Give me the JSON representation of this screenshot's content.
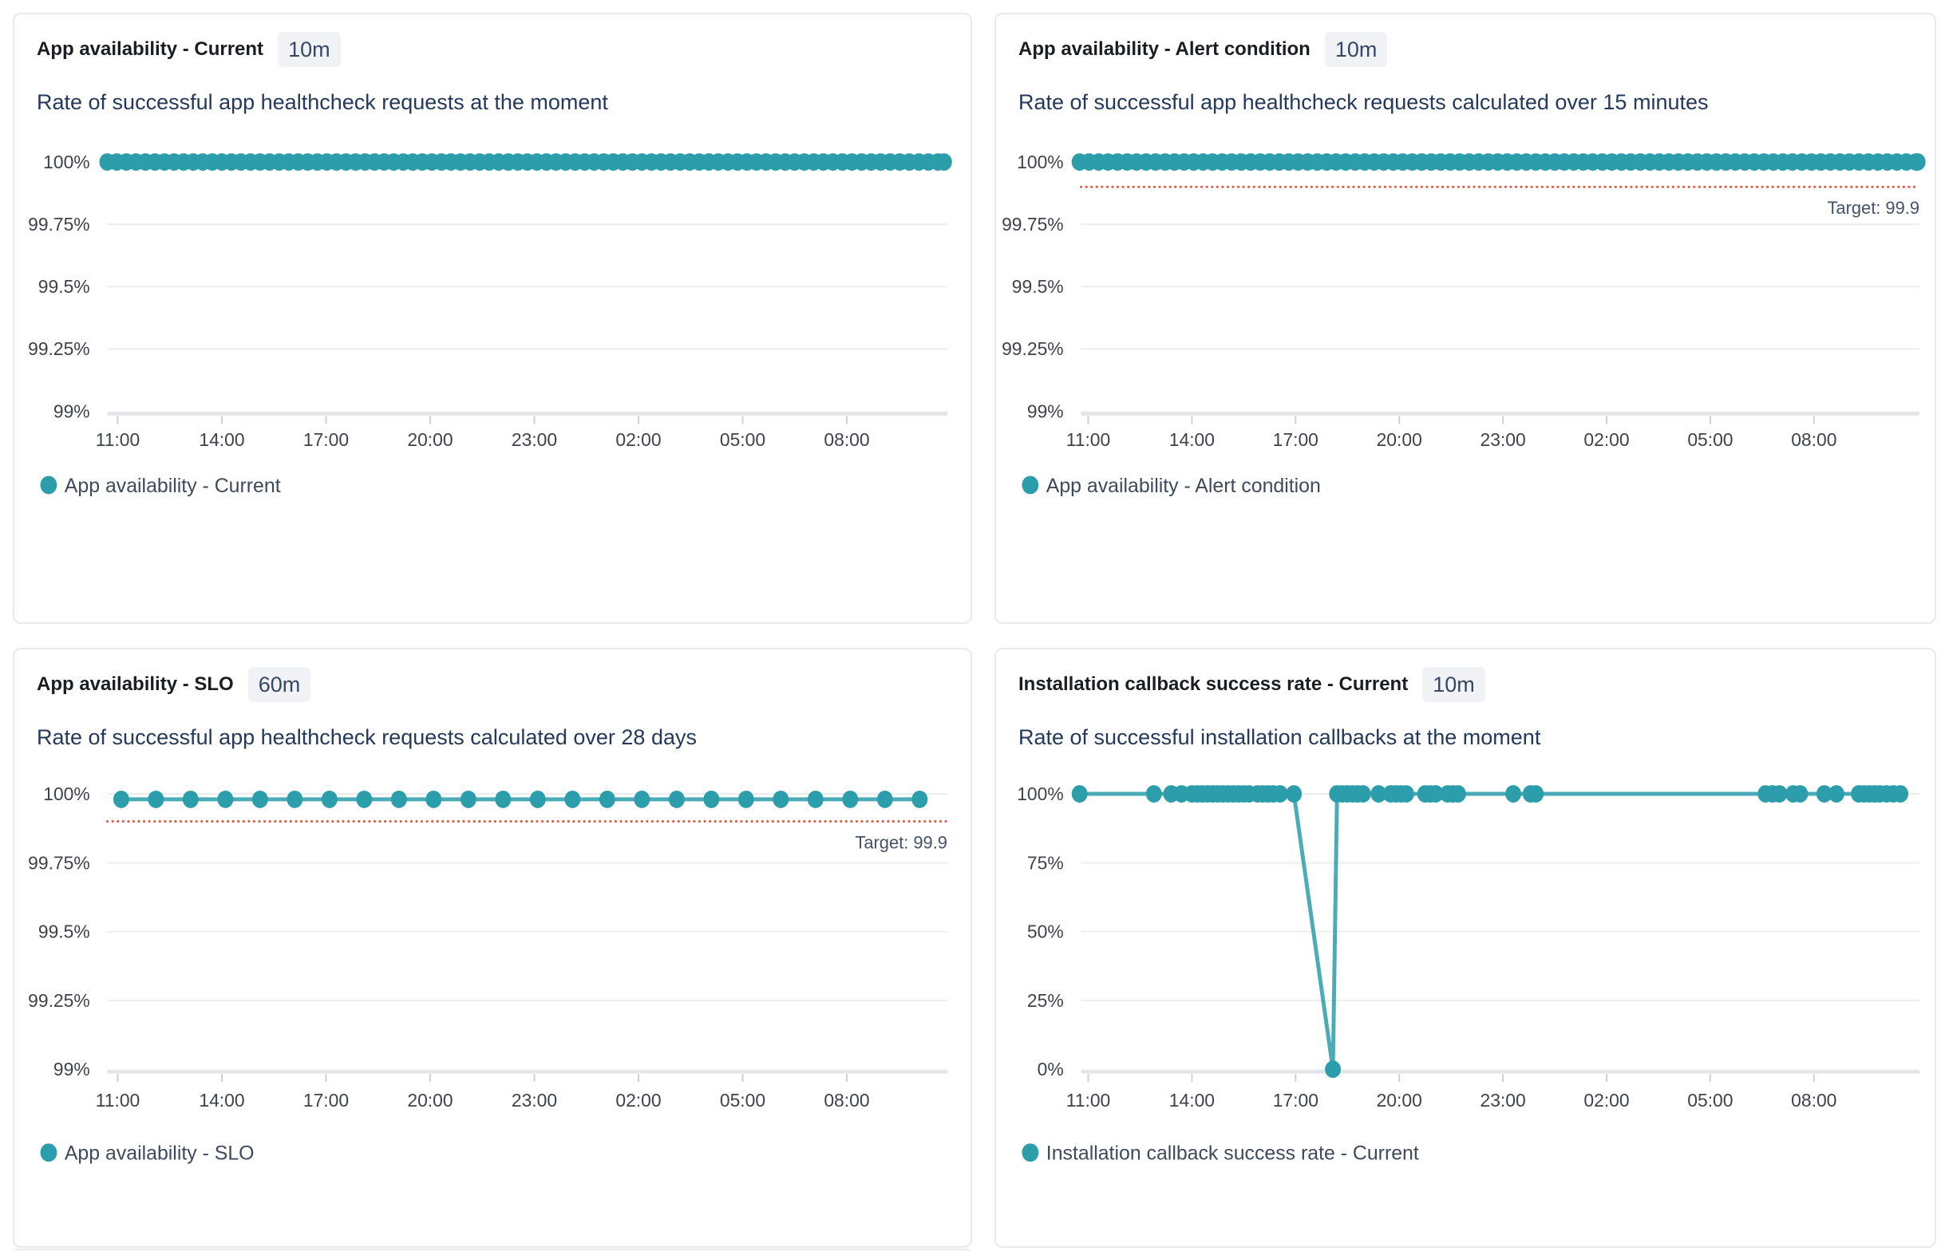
{
  "colors": {
    "teal": "#2B9DAB",
    "target_red": "#E4523E",
    "grid": "#ECEDEF",
    "baseline": "#E3E5E8",
    "tick_mark": "#CDD1D6",
    "title_text": "#1A1E23",
    "subtitle_text": "#24395B",
    "axis_label": "#3E434A",
    "legend_label": "#3E4A5C",
    "target_label": "#44526B",
    "badge_bg": "#F1F2F5",
    "badge_text": "#344767",
    "panel_border": "#E8EAED"
  },
  "chart_data": [
    {
      "type": "line",
      "title": "App availability - Current",
      "time_badge": "10m",
      "subtitle": "Rate of successful app healthcheck requests at the moment",
      "grid": true,
      "legend_position": "bottom-left",
      "ylim": [
        99,
        100
      ],
      "y_ticks": [
        {
          "label": "100%",
          "value": 100
        },
        {
          "label": "99.75%",
          "value": 99.75
        },
        {
          "label": "99.5%",
          "value": 99.5
        },
        {
          "label": "99.25%",
          "value": 99.25
        },
        {
          "label": "99%",
          "value": 99
        }
      ],
      "x_ticks": [
        {
          "label": "11:00",
          "t": 11
        },
        {
          "label": "14:00",
          "t": 14
        },
        {
          "label": "17:00",
          "t": 17
        },
        {
          "label": "20:00",
          "t": 20
        },
        {
          "label": "23:00",
          "t": 23
        },
        {
          "label": "02:00",
          "t": 26
        },
        {
          "label": "05:00",
          "t": 29
        },
        {
          "label": "08:00",
          "t": 32
        }
      ],
      "target": null,
      "series": [
        {
          "name": "App availability - Current",
          "constant_value": 100,
          "t_start": 10.7,
          "t_end": 34.8,
          "sample_minutes": 10,
          "marker": "dense"
        }
      ]
    },
    {
      "type": "line",
      "title": "App availability - Alert condition",
      "time_badge": "10m",
      "subtitle": "Rate of successful app healthcheck requests calculated over 15 minutes",
      "grid": true,
      "legend_position": "bottom-left",
      "ylim": [
        99,
        100
      ],
      "y_ticks": [
        {
          "label": "100%",
          "value": 100
        },
        {
          "label": "99.75%",
          "value": 99.75
        },
        {
          "label": "99.5%",
          "value": 99.5
        },
        {
          "label": "99.25%",
          "value": 99.25
        },
        {
          "label": "99%",
          "value": 99
        }
      ],
      "x_ticks": [
        {
          "label": "11:00",
          "t": 11
        },
        {
          "label": "14:00",
          "t": 14
        },
        {
          "label": "17:00",
          "t": 17
        },
        {
          "label": "20:00",
          "t": 20
        },
        {
          "label": "23:00",
          "t": 23
        },
        {
          "label": "02:00",
          "t": 26
        },
        {
          "label": "05:00",
          "t": 29
        },
        {
          "label": "08:00",
          "t": 32
        }
      ],
      "target": {
        "value": 99.9,
        "label": "Target: 99.9"
      },
      "series": [
        {
          "name": "App availability - Alert condition",
          "constant_value": 100,
          "t_start": 10.75,
          "t_end": 35.0,
          "sample_minutes": 10,
          "marker": "dense"
        }
      ]
    },
    {
      "type": "line",
      "title": "App availability - SLO",
      "time_badge": "60m",
      "subtitle": "Rate of successful app healthcheck requests calculated over 28 days",
      "grid": true,
      "legend_position": "bottom-left",
      "ylim": [
        99,
        100
      ],
      "y_ticks": [
        {
          "label": "100%",
          "value": 100
        },
        {
          "label": "99.75%",
          "value": 99.75
        },
        {
          "label": "99.5%",
          "value": 99.5
        },
        {
          "label": "99.25%",
          "value": 99.25
        },
        {
          "label": "99%",
          "value": 99
        }
      ],
      "x_ticks": [
        {
          "label": "11:00",
          "t": 11
        },
        {
          "label": "14:00",
          "t": 14
        },
        {
          "label": "17:00",
          "t": 17
        },
        {
          "label": "20:00",
          "t": 20
        },
        {
          "label": "23:00",
          "t": 23
        },
        {
          "label": "02:00",
          "t": 26
        },
        {
          "label": "05:00",
          "t": 29
        },
        {
          "label": "08:00",
          "t": 32
        }
      ],
      "target": {
        "value": 99.9,
        "label": "Target: 99.9"
      },
      "series": [
        {
          "name": "App availability - SLO",
          "marker": "dots",
          "points": [
            [
              11.1,
              99.98
            ],
            [
              12.1,
              99.98
            ],
            [
              13.1,
              99.98
            ],
            [
              14.1,
              99.98
            ],
            [
              15.1,
              99.98
            ],
            [
              16.1,
              99.98
            ],
            [
              17.1,
              99.98
            ],
            [
              18.1,
              99.98
            ],
            [
              19.1,
              99.98
            ],
            [
              20.1,
              99.98
            ],
            [
              21.1,
              99.98
            ],
            [
              22.1,
              99.98
            ],
            [
              23.1,
              99.98
            ],
            [
              24.1,
              99.98
            ],
            [
              25.1,
              99.98
            ],
            [
              26.1,
              99.98
            ],
            [
              27.1,
              99.98
            ],
            [
              28.1,
              99.98
            ],
            [
              29.1,
              99.98
            ],
            [
              30.1,
              99.98
            ],
            [
              31.1,
              99.98
            ],
            [
              32.1,
              99.98
            ],
            [
              33.1,
              99.98
            ],
            [
              34.1,
              99.98
            ]
          ]
        }
      ]
    },
    {
      "type": "line",
      "title": "Installation callback success rate - Current",
      "time_badge": "10m",
      "subtitle": "Rate of successful installation callbacks at the moment",
      "grid": true,
      "legend_position": "bottom-left",
      "ylim": [
        0,
        100
      ],
      "y_ticks": [
        {
          "label": "100%",
          "value": 100
        },
        {
          "label": "75%",
          "value": 75
        },
        {
          "label": "50%",
          "value": 50
        },
        {
          "label": "25%",
          "value": 25
        },
        {
          "label": "0%",
          "value": 0
        }
      ],
      "x_ticks": [
        {
          "label": "11:00",
          "t": 11
        },
        {
          "label": "14:00",
          "t": 14
        },
        {
          "label": "17:00",
          "t": 17
        },
        {
          "label": "20:00",
          "t": 20
        },
        {
          "label": "23:00",
          "t": 23
        },
        {
          "label": "02:00",
          "t": 26
        },
        {
          "label": "05:00",
          "t": 29
        },
        {
          "label": "08:00",
          "t": 32
        }
      ],
      "target": null,
      "series": [
        {
          "name": "Installation callback success rate - Current",
          "marker": "dots",
          "points": [
            [
              10.75,
              100
            ],
            [
              12.9,
              100
            ],
            [
              13.4,
              100
            ],
            [
              13.7,
              100
            ],
            [
              14.0,
              100
            ],
            [
              14.15,
              100
            ],
            [
              14.3,
              100
            ],
            [
              14.45,
              100
            ],
            [
              14.6,
              100
            ],
            [
              14.75,
              100
            ],
            [
              14.9,
              100
            ],
            [
              15.05,
              100
            ],
            [
              15.2,
              100
            ],
            [
              15.35,
              100
            ],
            [
              15.5,
              100
            ],
            [
              15.65,
              100
            ],
            [
              15.9,
              100
            ],
            [
              16.05,
              100
            ],
            [
              16.2,
              100
            ],
            [
              16.35,
              100
            ],
            [
              16.55,
              100
            ],
            [
              16.95,
              100
            ],
            [
              18.08,
              0
            ],
            [
              18.2,
              100
            ],
            [
              18.35,
              100
            ],
            [
              18.5,
              100
            ],
            [
              18.65,
              100
            ],
            [
              18.8,
              100
            ],
            [
              18.95,
              100
            ],
            [
              19.4,
              100
            ],
            [
              19.75,
              100
            ],
            [
              19.9,
              100
            ],
            [
              20.05,
              100
            ],
            [
              20.2,
              100
            ],
            [
              20.75,
              100
            ],
            [
              20.9,
              100
            ],
            [
              21.05,
              100
            ],
            [
              21.4,
              100
            ],
            [
              21.55,
              100
            ],
            [
              21.7,
              100
            ],
            [
              23.3,
              100
            ],
            [
              23.8,
              100
            ],
            [
              23.95,
              100
            ],
            [
              30.6,
              100
            ],
            [
              30.8,
              100
            ],
            [
              31.0,
              100
            ],
            [
              31.4,
              100
            ],
            [
              31.6,
              100
            ],
            [
              32.3,
              100
            ],
            [
              32.65,
              100
            ],
            [
              33.3,
              100
            ],
            [
              33.45,
              100
            ],
            [
              33.6,
              100
            ],
            [
              33.75,
              100
            ],
            [
              33.9,
              100
            ],
            [
              34.1,
              100
            ],
            [
              34.3,
              100
            ],
            [
              34.5,
              100
            ]
          ]
        }
      ]
    }
  ]
}
